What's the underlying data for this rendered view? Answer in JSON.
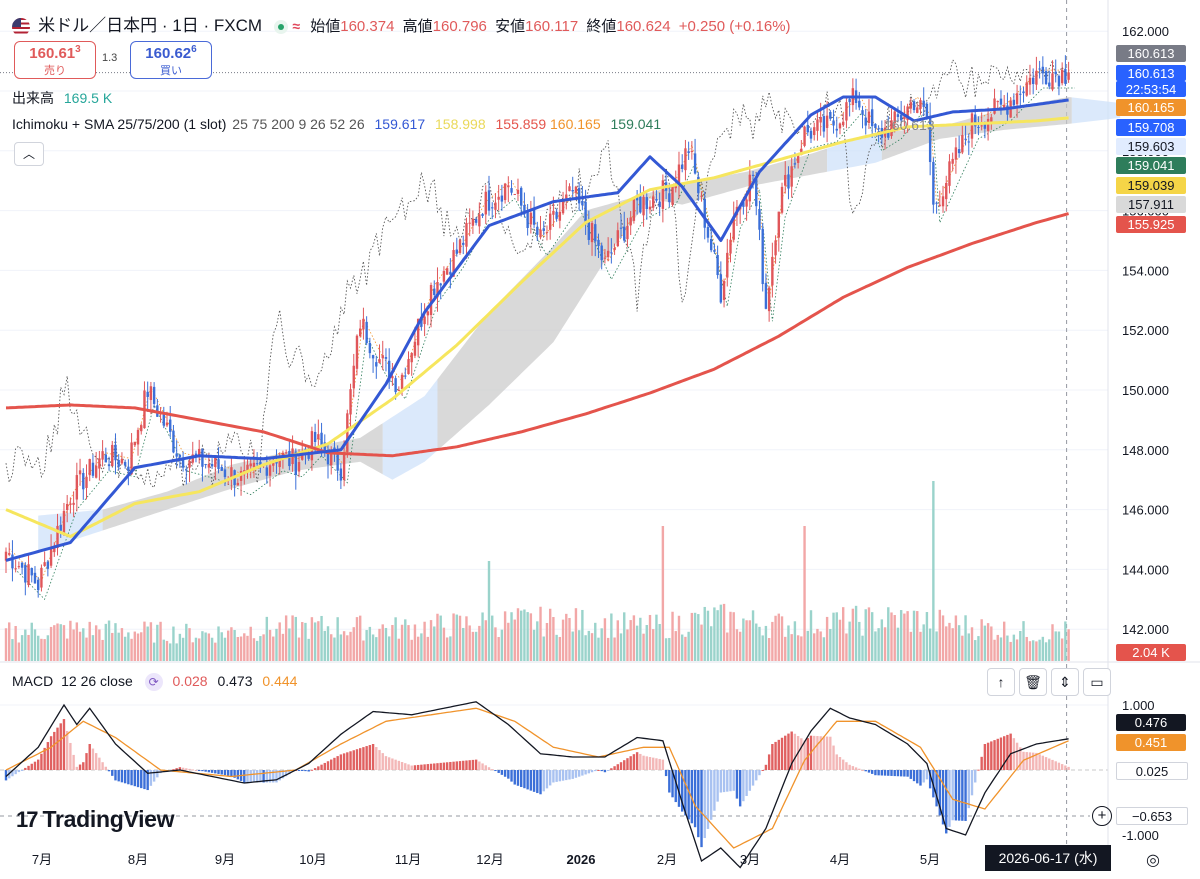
{
  "header": {
    "symbol": "米ドル／日本円 · 1日 · FXCM",
    "open_label": "始値",
    "open": "160.374",
    "high_label": "高値",
    "high": "160.796",
    "low_label": "安値",
    "low": "160.117",
    "close_label": "終値",
    "close": "160.624",
    "change": "+0.250 (+0.16%)"
  },
  "trade": {
    "sell_price": "160.61",
    "sell_sup": "3",
    "sell_label": "売り",
    "spread": "1.3",
    "buy_price": "160.62",
    "buy_sup": "6",
    "buy_label": "買い"
  },
  "volume_legend": {
    "label": "出来高",
    "value": "169.5 K"
  },
  "ichimoku_legend": {
    "name": "Ichimoku + SMA 25/75/200 (1 slot)",
    "params": "25 75 200 9 26 52 26",
    "values": [
      "159.617",
      "158.998",
      "155.859",
      "160.165",
      "159.041"
    ]
  },
  "collapse_icon": "chevron-up-icon",
  "macd_legend": {
    "name": "MACD",
    "params": "12 26 close",
    "values": [
      "0.028",
      "0.473",
      "0.444"
    ]
  },
  "price_axis": {
    "ticks": [
      "162.000",
      "160.000",
      "158.000",
      "156.000",
      "154.000",
      "152.000",
      "150.000",
      "148.000",
      "146.000",
      "144.000",
      "142.000"
    ],
    "tags": [
      {
        "text": "160.613",
        "color": "#787b86"
      },
      {
        "text": "160.613",
        "color": "#2962ff"
      },
      {
        "text": "22:53:54",
        "color": "#2962ff"
      },
      {
        "text": "160.165",
        "color": "#f0932b"
      },
      {
        "text": "159.708",
        "color": "#2962ff"
      },
      {
        "text": "159.603",
        "color": "#e1ecff"
      },
      {
        "text": "159.041",
        "color": "#2e7d5b"
      },
      {
        "text": "159.039",
        "color": "#f5d547"
      },
      {
        "text": "157.911",
        "color": "#d9d9d9"
      },
      {
        "text": "155.925",
        "color": "#e4544c"
      }
    ],
    "volume_tag": "2.04 K"
  },
  "macd_axis": {
    "ticks": [
      "1.000",
      "-1.000"
    ],
    "tags": [
      {
        "text": "0.476",
        "color": "#131722"
      },
      {
        "text": "0.451",
        "color": "#f0932b"
      },
      {
        "text": "0.025",
        "color": "#ffffff"
      },
      {
        "text": "−0.653",
        "color": "#ffffff"
      }
    ]
  },
  "time_axis": {
    "labels": [
      "7月",
      "8月",
      "9月",
      "10月",
      "11月",
      "12月",
      "2026",
      "2月",
      "3月",
      "4月",
      "5月"
    ],
    "cursor_date": "2026-06-17 (水)"
  },
  "overlay_label": "160.613",
  "logo_text": "TradingView",
  "colors": {
    "up": "#e0565a",
    "down": "#3b6fd8",
    "sma25": "#3358d4",
    "sma75": "#f6e65e",
    "sma200": "#e4544c",
    "kumo_bull": "#cfe2fa",
    "kumo_bear": "#c9c9c9",
    "macd": "#131722",
    "signal": "#f0932b",
    "hist_up": "#e06060",
    "hist_down": "#3b6fd8",
    "vol_up": "#f2a7a7",
    "vol_down": "#9ad3cb"
  },
  "chart_data": {
    "type": "candlestick",
    "title": "米ドル／日本円 · 1日 · FXCM",
    "ylim": [
      141.0,
      163.0
    ],
    "xlabels": [
      "7月",
      "8月",
      "9月",
      "10月",
      "11月",
      "12月",
      "2026",
      "2月",
      "3月",
      "4月",
      "5月"
    ],
    "anchors": {
      "close": [
        [
          0,
          144.6
        ],
        [
          10,
          143.5
        ],
        [
          20,
          146.5
        ],
        [
          30,
          147.8
        ],
        [
          38,
          147.6
        ],
        [
          44,
          150.0
        ],
        [
          54,
          147.8
        ],
        [
          64,
          147.5
        ],
        [
          74,
          147.0
        ],
        [
          84,
          147.8
        ],
        [
          90,
          147.6
        ],
        [
          96,
          148.3
        ],
        [
          104,
          147.4
        ],
        [
          110,
          152.3
        ],
        [
          116,
          151.0
        ],
        [
          122,
          150.2
        ],
        [
          132,
          153.4
        ],
        [
          140,
          154.6
        ],
        [
          148,
          156.2
        ],
        [
          156,
          156.9
        ],
        [
          166,
          155.0
        ],
        [
          176,
          156.6
        ],
        [
          186,
          154.2
        ],
        [
          196,
          156.2
        ],
        [
          206,
          156.7
        ],
        [
          212,
          158.1
        ],
        [
          216,
          156.2
        ],
        [
          222,
          153.3
        ],
        [
          226,
          155.9
        ],
        [
          232,
          157.2
        ],
        [
          236,
          152.8
        ],
        [
          240,
          156.3
        ],
        [
          248,
          158.6
        ],
        [
          256,
          158.8
        ],
        [
          264,
          159.8
        ],
        [
          270,
          158.5
        ],
        [
          276,
          158.9
        ],
        [
          282,
          159.7
        ],
        [
          286,
          159.1
        ],
        [
          288,
          156.1
        ],
        [
          294,
          157.5
        ],
        [
          300,
          158.9
        ],
        [
          310,
          159.5
        ],
        [
          320,
          160.6
        ],
        [
          330,
          160.6
        ]
      ],
      "sma25": [
        [
          0,
          144.3
        ],
        [
          20,
          144.9
        ],
        [
          40,
          147.4
        ],
        [
          60,
          147.8
        ],
        [
          80,
          147.7
        ],
        [
          104,
          148.0
        ],
        [
          118,
          150.2
        ],
        [
          130,
          152.6
        ],
        [
          150,
          155.5
        ],
        [
          170,
          156.3
        ],
        [
          190,
          156.6
        ],
        [
          200,
          157.8
        ],
        [
          210,
          156.8
        ],
        [
          222,
          155.0
        ],
        [
          234,
          157.3
        ],
        [
          250,
          159.2
        ],
        [
          260,
          159.8
        ],
        [
          270,
          159.8
        ],
        [
          282,
          159.0
        ],
        [
          294,
          159.3
        ],
        [
          310,
          159.4
        ],
        [
          330,
          159.7
        ]
      ],
      "sma75": [
        [
          0,
          146.0
        ],
        [
          20,
          145.1
        ],
        [
          40,
          146.2
        ],
        [
          60,
          146.6
        ],
        [
          80,
          147.5
        ],
        [
          100,
          148.2
        ],
        [
          120,
          149.7
        ],
        [
          140,
          151.5
        ],
        [
          160,
          153.6
        ],
        [
          180,
          155.6
        ],
        [
          200,
          156.7
        ],
        [
          220,
          157.1
        ],
        [
          240,
          157.7
        ],
        [
          260,
          158.3
        ],
        [
          280,
          158.8
        ],
        [
          300,
          158.9
        ],
        [
          320,
          159.0
        ],
        [
          330,
          159.1
        ]
      ],
      "sma200": [
        [
          0,
          149.4
        ],
        [
          20,
          149.5
        ],
        [
          40,
          149.4
        ],
        [
          60,
          149.0
        ],
        [
          80,
          148.6
        ],
        [
          100,
          147.9
        ],
        [
          120,
          147.8
        ],
        [
          140,
          148.1
        ],
        [
          160,
          148.6
        ],
        [
          180,
          149.2
        ],
        [
          200,
          149.9
        ],
        [
          220,
          150.7
        ],
        [
          240,
          151.8
        ],
        [
          260,
          153.1
        ],
        [
          280,
          154.1
        ],
        [
          300,
          154.9
        ],
        [
          320,
          155.6
        ],
        [
          330,
          155.9
        ]
      ],
      "volume": [
        [
          0,
          0.32
        ],
        [
          20,
          0.35
        ],
        [
          40,
          0.33
        ],
        [
          60,
          0.3
        ],
        [
          80,
          0.36
        ],
        [
          100,
          0.38
        ],
        [
          120,
          0.36
        ],
        [
          140,
          0.4
        ],
        [
          160,
          0.44
        ],
        [
          180,
          0.43
        ],
        [
          200,
          0.37
        ],
        [
          220,
          0.48
        ],
        [
          240,
          0.4
        ],
        [
          260,
          0.44
        ],
        [
          280,
          0.47
        ],
        [
          300,
          0.38
        ],
        [
          320,
          0.31
        ],
        [
          330,
          0.33
        ]
      ],
      "macd": [
        [
          0,
          -0.1
        ],
        [
          10,
          0.35
        ],
        [
          18,
          1.0
        ],
        [
          22,
          0.7
        ],
        [
          26,
          0.95
        ],
        [
          34,
          0.4
        ],
        [
          44,
          -0.05
        ],
        [
          54,
          0.0
        ],
        [
          64,
          -0.1
        ],
        [
          74,
          -0.2
        ],
        [
          84,
          -0.15
        ],
        [
          94,
          0.1
        ],
        [
          104,
          0.55
        ],
        [
          114,
          0.9
        ],
        [
          126,
          0.85
        ],
        [
          136,
          0.95
        ],
        [
          146,
          1.05
        ],
        [
          156,
          0.7
        ],
        [
          166,
          0.25
        ],
        [
          176,
          0.2
        ],
        [
          186,
          0.2
        ],
        [
          196,
          0.5
        ],
        [
          204,
          0.45
        ],
        [
          210,
          -0.5
        ],
        [
          216,
          -1.4
        ],
        [
          222,
          -1.2
        ],
        [
          228,
          -1.5
        ],
        [
          236,
          -0.9
        ],
        [
          244,
          0.1
        ],
        [
          250,
          0.6
        ],
        [
          256,
          0.95
        ],
        [
          262,
          0.8
        ],
        [
          270,
          0.7
        ],
        [
          280,
          0.4
        ],
        [
          286,
          0.1
        ],
        [
          292,
          -0.9
        ],
        [
          298,
          -1.0
        ],
        [
          304,
          -0.35
        ],
        [
          312,
          0.25
        ],
        [
          320,
          0.4
        ],
        [
          330,
          0.48
        ]
      ],
      "signal": [
        [
          0,
          0.0
        ],
        [
          14,
          0.35
        ],
        [
          24,
          0.75
        ],
        [
          34,
          0.5
        ],
        [
          48,
          0.0
        ],
        [
          70,
          -0.1
        ],
        [
          90,
          0.0
        ],
        [
          104,
          0.4
        ],
        [
          118,
          0.75
        ],
        [
          132,
          0.85
        ],
        [
          146,
          0.95
        ],
        [
          158,
          0.75
        ],
        [
          170,
          0.35
        ],
        [
          184,
          0.2
        ],
        [
          198,
          0.35
        ],
        [
          206,
          0.35
        ],
        [
          214,
          -0.55
        ],
        [
          226,
          -1.2
        ],
        [
          238,
          -0.9
        ],
        [
          248,
          0.15
        ],
        [
          258,
          0.75
        ],
        [
          270,
          0.75
        ],
        [
          284,
          0.35
        ],
        [
          294,
          -0.45
        ],
        [
          304,
          -0.6
        ],
        [
          316,
          0.15
        ],
        [
          330,
          0.45
        ]
      ]
    },
    "ichimoku_cloud": {
      "upper": [
        [
          10,
          145.8
        ],
        [
          30,
          146.0
        ],
        [
          50,
          146.6
        ],
        [
          70,
          147.5
        ],
        [
          90,
          148.0
        ],
        [
          110,
          148.4
        ],
        [
          130,
          149.8
        ],
        [
          150,
          152.6
        ],
        [
          170,
          154.8
        ],
        [
          180,
          156.0
        ],
        [
          190,
          156.3
        ],
        [
          200,
          156.6
        ],
        [
          210,
          156.9
        ],
        [
          230,
          157.3
        ],
        [
          250,
          157.9
        ],
        [
          270,
          158.6
        ],
        [
          290,
          158.8
        ],
        [
          310,
          159.4
        ],
        [
          330,
          159.8
        ],
        [
          346,
          159.6
        ]
      ],
      "lower": [
        [
          10,
          144.6
        ],
        [
          30,
          145.3
        ],
        [
          50,
          146.0
        ],
        [
          70,
          146.7
        ],
        [
          90,
          147.3
        ],
        [
          110,
          147.6
        ],
        [
          120,
          147.0
        ],
        [
          130,
          147.6
        ],
        [
          150,
          149.5
        ],
        [
          170,
          151.6
        ],
        [
          180,
          153.3
        ],
        [
          190,
          155.0
        ],
        [
          200,
          156.4
        ],
        [
          210,
          156.2
        ],
        [
          230,
          156.8
        ],
        [
          250,
          157.2
        ],
        [
          270,
          157.6
        ],
        [
          290,
          158.4
        ],
        [
          310,
          158.7
        ],
        [
          330,
          158.9
        ],
        [
          346,
          159.1
        ]
      ]
    }
  }
}
